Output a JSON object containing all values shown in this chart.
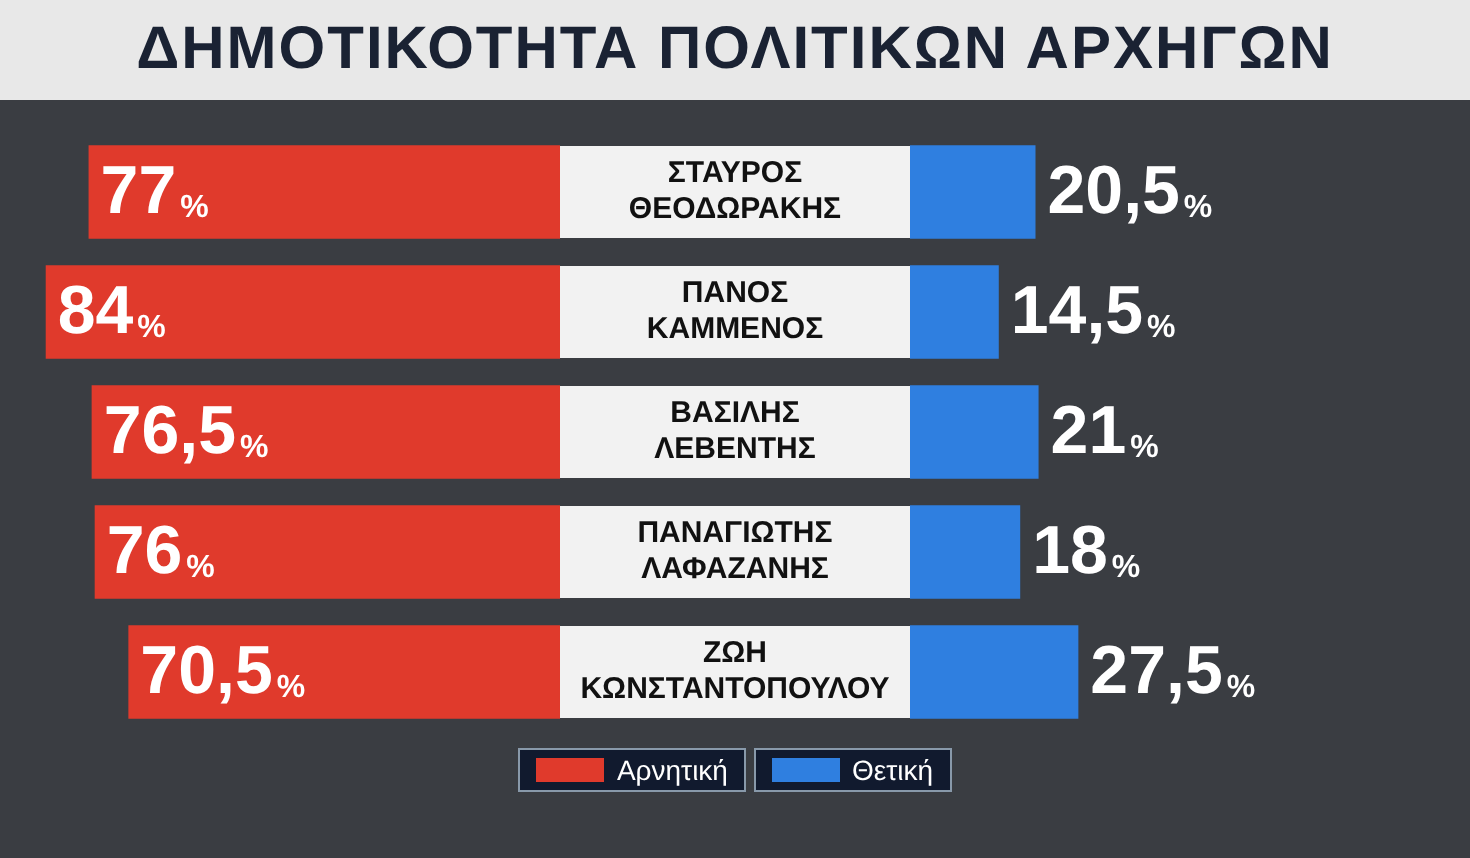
{
  "chart_data": [
    {
      "type": "bar",
      "orientation": "horizontal",
      "title": "ΔΗΜΟΤΙΚΟΤΗΤΑ ΠΟΛΙΤΙΚΩΝ ΑΡΧΗΓΩΝ",
      "categories": [
        "ΣΤΑΥΡΟΣ ΘΕΟΔΩΡΑΚΗΣ",
        "ΠΑΝΟΣ ΚΑΜΜΕΝΟΣ",
        "ΒΑΣΙΛΗΣ ΛΕΒΕΝΤΗΣ",
        "ΠΑΝΑΓΙΩΤΗΣ ΛΑΦΑΖΑΝΗΣ",
        "ΖΩΗ ΚΩΝΣΤΑΝΤΟΠΟΥΛΟΥ"
      ],
      "series": [
        {
          "name": "Αρνητική",
          "color": "#e03a2c",
          "values": [
            77,
            84,
            76.5,
            76,
            70.5
          ],
          "value_labels": [
            "77%",
            "84%",
            "76,5%",
            "76%",
            "70,5%"
          ]
        }
      ],
      "legend": "bottom"
    },
    {
      "type": "bar",
      "orientation": "horizontal",
      "categories": [
        null,
        null,
        null,
        null,
        null
      ],
      "series": [
        {
          "name": "Θετική",
          "color": "#2f7fe0",
          "values": [
            20.5,
            14.5,
            21,
            18,
            27.5
          ],
          "value_labels": [
            "20,5%",
            "14,5%",
            "21%",
            "18%",
            "27,5%"
          ]
        }
      ],
      "legend": "bottom",
      "tick_labels": false
    }
  ]
}
